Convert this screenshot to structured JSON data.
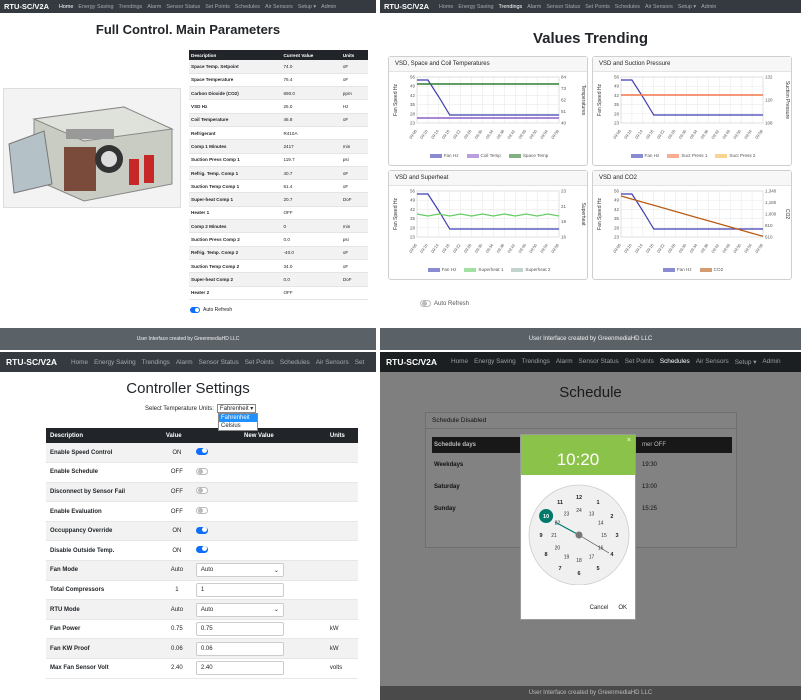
{
  "nav_common": {
    "brand": "RTU-SC/V2A",
    "items": [
      "Home",
      "Energy Saving",
      "Trendings",
      "Alarm",
      "Sensor Status",
      "Set Points",
      "Schedules",
      "Air Sensors",
      "Setup ▾",
      "Admin"
    ]
  },
  "nav_q3_items": [
    "Home",
    "Energy Saving",
    "Trendings",
    "Alarm",
    "Sensor Status",
    "Set Points",
    "Schedules",
    "Air Sensors",
    "Set"
  ],
  "footer_text": "User Interface created by GreenmediaHD LLC",
  "main": {
    "title": "Full Control. Main Parameters",
    "columns": [
      "Description",
      "Current Value",
      "Units"
    ],
    "rows": [
      [
        "Space Temp. Setpoint",
        "74.0",
        "oF"
      ],
      [
        "Space Temperature",
        "76.4",
        "oF"
      ],
      [
        "Carbon Dioxide (CO2)",
        "690.0",
        "ppm"
      ],
      [
        "VSD Hz",
        "25.0",
        "Hz"
      ],
      [
        "Coil Temperature",
        "46.8",
        "oF"
      ],
      [
        "Refrigerant",
        "R410A",
        ""
      ],
      [
        "Comp 1 Minutes",
        "2417",
        "min"
      ],
      [
        "Suction Press Comp 1",
        "119.7",
        "psi"
      ],
      [
        "Refrig. Temp. Comp 1",
        "40.7",
        "oF"
      ],
      [
        "Suction Temp Comp 1",
        "61.4",
        "oF"
      ],
      [
        "Super-heat Comp 1",
        "20.7",
        "DoF"
      ],
      [
        "Heater 1",
        "OFF",
        ""
      ],
      [
        "Comp 2 Minutes",
        "0",
        "min"
      ],
      [
        "Suction Press Comp 2",
        "0.0",
        "psi"
      ],
      [
        "Refrig. Temp. Comp 2",
        "-40.0",
        "oF"
      ],
      [
        "Suction Temp Comp 2",
        "34.0",
        "oF"
      ],
      [
        "Super-heat Comp 2",
        "0.0",
        "DoF"
      ],
      [
        "Heater 2",
        "OFF",
        ""
      ]
    ],
    "auto_refresh": "Auto Refresh"
  },
  "trending": {
    "title": "Values Trending",
    "auto_refresh": "Auto Refresh",
    "times": [
      "09:06",
      "09:10",
      "09:14",
      "09:18",
      "09:22",
      "09:26",
      "09:30",
      "09:34",
      "09:38",
      "09:42",
      "09:46",
      "09:50",
      "09:54",
      "09:58"
    ],
    "charts": [
      {
        "title": "VSD, Space and Coil Temperatures",
        "ylabel": "Fan Speed Hz",
        "y2label": "Temperatures",
        "yticks": [
          "56",
          "49",
          "42",
          "35",
          "28",
          "23"
        ],
        "y2ticks": [
          "84",
          "73",
          "62",
          "51",
          "40"
        ],
        "legend": [
          "Fan Hz",
          "Coil Temp",
          "Space Temp"
        ],
        "colors": [
          "#3f3fb5",
          "#8e5fc8",
          "#2e7d32"
        ]
      },
      {
        "title": "VSD and Suction Pressure",
        "ylabel": "Fan Speed Hz",
        "y2label": "Suction Pressure",
        "yticks": [
          "56",
          "49",
          "42",
          "35",
          "28",
          "23"
        ],
        "y2ticks": [
          "132",
          "120",
          "108"
        ],
        "legend": [
          "Fan Hz",
          "Suct Press 1",
          "Suct Press 2"
        ],
        "colors": [
          "#3f3fb5",
          "#f4764a",
          "#f2b94a"
        ]
      },
      {
        "title": "VSD and Superheat",
        "ylabel": "Fan Speed Hz",
        "y2label": "Superheat",
        "yticks": [
          "56",
          "49",
          "42",
          "35",
          "28",
          "23"
        ],
        "y2ticks": [
          "23",
          "21",
          "19",
          "16"
        ],
        "legend": [
          "Fan Hz",
          "Superheat 1",
          "Superheat 2"
        ],
        "colors": [
          "#3f3fb5",
          "#66cc66",
          "#9bb7b0"
        ]
      },
      {
        "title": "VSD and CO2",
        "ylabel": "Fan Speed Hz",
        "y2label": "CO2",
        "yticks": [
          "56",
          "49",
          "42",
          "35",
          "28",
          "23"
        ],
        "y2ticks": [
          "1,340",
          "1,160",
          "1,000",
          "810",
          "610"
        ],
        "legend": [
          "Fan Hz",
          "CO2"
        ],
        "colors": [
          "#3f3fb5",
          "#b85c16"
        ]
      }
    ]
  },
  "settings": {
    "title": "Controller Settings",
    "units_label": "Select Temperature Units:",
    "units_selected": "Fahrenheit",
    "units_options": [
      "Fahrenheit",
      "Celsius"
    ],
    "columns": [
      "Description",
      "Value",
      "New Value",
      "Units"
    ],
    "rows": [
      {
        "d": "Enable Speed Control",
        "v": "ON",
        "type": "toggle",
        "on": true,
        "u": ""
      },
      {
        "d": "Enable Schedule",
        "v": "OFF",
        "type": "toggle",
        "on": false,
        "u": ""
      },
      {
        "d": "Disconnect by Sensor Fail",
        "v": "OFF",
        "type": "toggle",
        "on": false,
        "u": ""
      },
      {
        "d": "Enable Evaluation",
        "v": "OFF",
        "type": "toggle",
        "on": false,
        "u": ""
      },
      {
        "d": "Occuppancy Override",
        "v": "ON",
        "type": "toggle",
        "on": true,
        "u": ""
      },
      {
        "d": "Disable Outside Temp.",
        "v": "ON",
        "type": "toggle",
        "on": true,
        "u": ""
      },
      {
        "d": "Fan Mode",
        "v": "Auto",
        "type": "select",
        "nv": "Auto",
        "u": ""
      },
      {
        "d": "Total Compressors",
        "v": "1",
        "type": "input",
        "nv": "1",
        "u": ""
      },
      {
        "d": "RTU Mode",
        "v": "Auto",
        "type": "select",
        "nv": "Auto",
        "u": ""
      },
      {
        "d": "Fan Power",
        "v": "0.75",
        "type": "input",
        "nv": "0.75",
        "u": "kW"
      },
      {
        "d": "Fan KW Proof",
        "v": "0.06",
        "type": "input",
        "nv": "0.06",
        "u": "kW"
      },
      {
        "d": "Max Fan Sensor Volt",
        "v": "2.40",
        "type": "input",
        "nv": "2.40",
        "u": "volts"
      }
    ]
  },
  "schedule": {
    "title": "Schedule",
    "card_title": "Schedule Disabled",
    "col_days": "Schedule days",
    "col_off": "mer OFF",
    "rows": [
      {
        "day": "Weekdays",
        "off": "19:30"
      },
      {
        "day": "Saturday",
        "off": "13:00"
      },
      {
        "day": "Sunday",
        "off": "15:25"
      }
    ],
    "picker": {
      "time": "10:20",
      "close": "×",
      "outer_hours": [
        "12",
        "1",
        "2",
        "3",
        "4",
        "5",
        "6",
        "7",
        "8",
        "9",
        "10",
        "11"
      ],
      "inner_hours": [
        "24",
        "13",
        "14",
        "15",
        "16",
        "17",
        "18",
        "19",
        "20",
        "21",
        "22",
        "23"
      ],
      "cancel": "Cancel",
      "ok": "OK"
    }
  }
}
